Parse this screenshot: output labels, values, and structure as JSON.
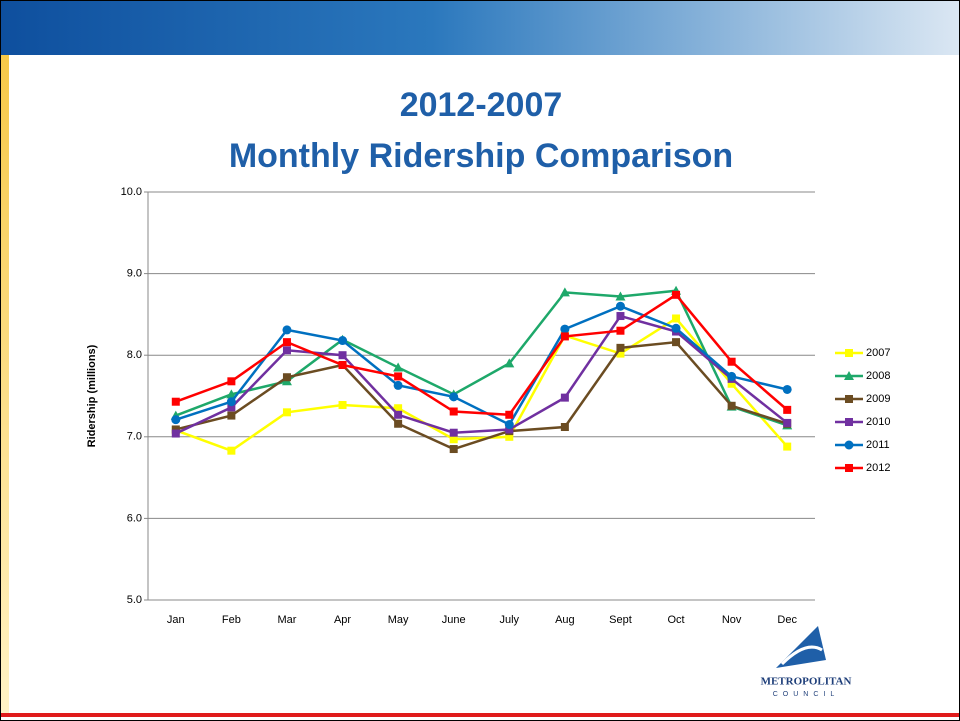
{
  "chart_data": {
    "type": "line",
    "title": "2012-2007",
    "subtitle": "Monthly Ridership Comparison",
    "y_label": "Ridership (millions)",
    "categories": [
      "Jan",
      "Feb",
      "Mar",
      "Apr",
      "May",
      "June",
      "July",
      "Aug",
      "Sept",
      "Oct",
      "Nov",
      "Dec"
    ],
    "series": [
      {
        "name": "2007",
        "color": "#ffff00",
        "marker": "square",
        "values": [
          7.08,
          6.83,
          7.3,
          7.39,
          7.35,
          6.97,
          7.0,
          8.24,
          8.02,
          8.45,
          7.65,
          6.88
        ]
      },
      {
        "name": "2008",
        "color": "#1ea86a",
        "marker": "triangle",
        "values": [
          7.26,
          7.52,
          7.68,
          8.19,
          7.85,
          7.52,
          7.9,
          8.77,
          8.72,
          8.79,
          7.37,
          7.14
        ]
      },
      {
        "name": "2009",
        "color": "#6b4c22",
        "marker": "square",
        "values": [
          7.09,
          7.26,
          7.73,
          7.88,
          7.16,
          6.85,
          7.07,
          7.12,
          8.09,
          8.16,
          7.38,
          7.16
        ]
      },
      {
        "name": "2010",
        "color": "#7030a0",
        "marker": "square",
        "values": [
          7.04,
          7.36,
          8.06,
          8.0,
          7.27,
          7.05,
          7.09,
          7.48,
          8.48,
          8.29,
          7.71,
          7.17
        ]
      },
      {
        "name": "2011",
        "color": "#0070c0",
        "marker": "circle",
        "values": [
          7.21,
          7.43,
          8.31,
          8.18,
          7.63,
          7.49,
          7.15,
          8.32,
          8.6,
          8.33,
          7.74,
          7.58
        ]
      },
      {
        "name": "2012",
        "color": "#ff0000",
        "marker": "square",
        "values": [
          7.43,
          7.68,
          8.16,
          7.88,
          7.74,
          7.31,
          7.27,
          8.23,
          8.3,
          8.74,
          7.92,
          7.33
        ]
      }
    ],
    "ylim": [
      5,
      10
    ],
    "yticks": [
      {
        "value": 5,
        "label": "5.0"
      },
      {
        "value": 6,
        "label": "6.0"
      },
      {
        "value": 7,
        "label": "7.0"
      },
      {
        "value": 8,
        "label": "8.0"
      },
      {
        "value": 9,
        "label": "9.0"
      },
      {
        "value": 10,
        "label": "10.0"
      }
    ],
    "grid": true,
    "legend": "right"
  },
  "logo": {
    "name": "METROPOLITAN",
    "subtitle": "COUNCIL"
  }
}
